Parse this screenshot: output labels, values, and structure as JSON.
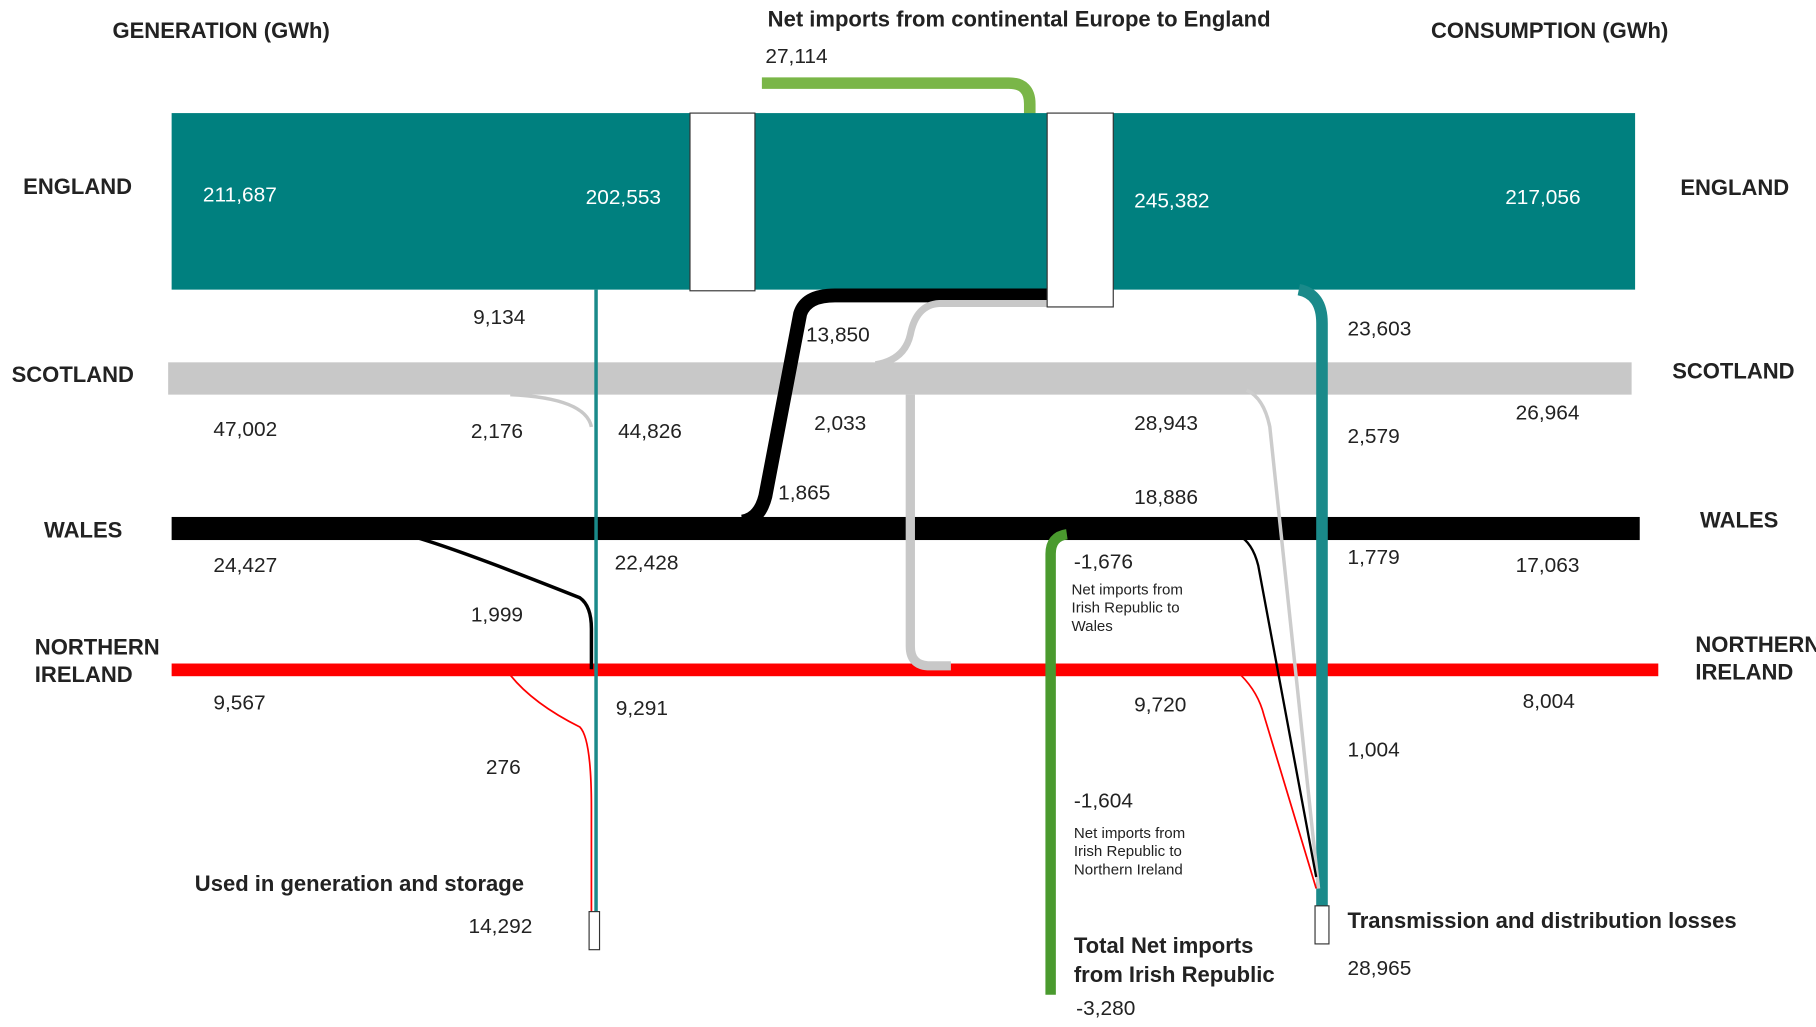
{
  "headers": {
    "generation": "GENERATION (GWh)",
    "consumption": "CONSUMPTION (GWh)"
  },
  "regions": {
    "england": "ENGLAND",
    "scotland": "SCOTLAND",
    "wales": "WALES",
    "northern_ireland": "NORTHERN IRELAND"
  },
  "continental": {
    "label": "Net imports from continental Europe to England",
    "value": "27,114"
  },
  "england": {
    "generation": "211,687",
    "own_use": "9,134",
    "after_own_use": "202,553",
    "transfer_in": "13,850",
    "after_transfers": "245,382",
    "losses": "23,603",
    "consumption": "217,056"
  },
  "scotland": {
    "generation": "47,002",
    "own_use": "2,176",
    "after_own_use": "44,826",
    "transfer_out": "2,033",
    "after_transfers": "28,943",
    "losses": "2,579",
    "consumption": "26,964"
  },
  "wales": {
    "generation": "24,427",
    "own_use": "1,999",
    "after_own_use": "22,428",
    "transfer_out": "1,865",
    "after_transfers": "18,886",
    "irish_imports": "-1,676",
    "irish_imports_label": "Net imports from Irish Republic to Wales",
    "losses": "1,779",
    "consumption": "17,063"
  },
  "northern_ireland": {
    "generation": "9,567",
    "own_use": "276",
    "after_own_use": "9,291",
    "after_transfers": "9,720",
    "irish_imports": "-1,604",
    "irish_imports_label": "Net imports from Irish Republic to Northern Ireland",
    "losses": "1,004",
    "consumption": "8,004"
  },
  "totals": {
    "used_label": "Used in generation and storage",
    "used": "14,292",
    "losses_label": "Transmission and distribution losses",
    "losses": "28,965",
    "irish_label": "Total Net imports from Irish Republic",
    "irish": "-3,280"
  }
}
